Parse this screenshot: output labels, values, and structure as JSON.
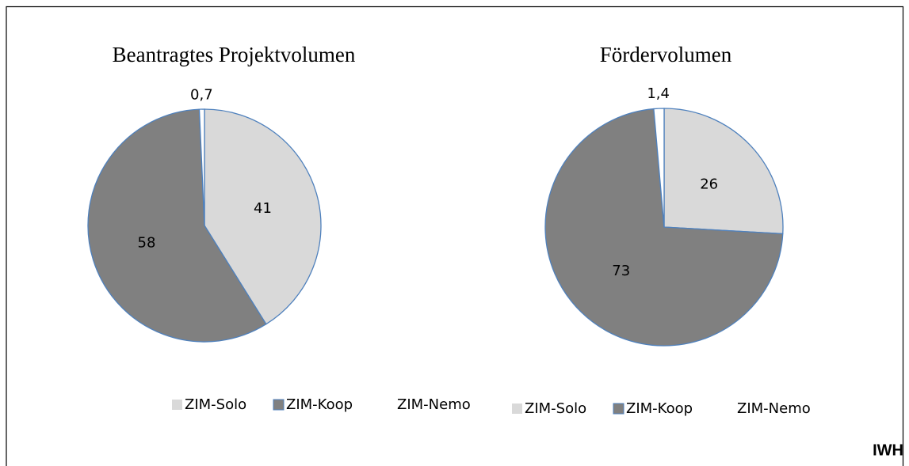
{
  "chart_data": [
    {
      "type": "pie",
      "title": "Beantragtes Projektvolumen",
      "categories": [
        "ZIM-Solo",
        "ZIM-Koop",
        "ZIM-Nemo"
      ],
      "values": [
        41,
        58,
        0.7
      ],
      "value_labels": [
        "41",
        "58",
        "0,7"
      ],
      "colors": [
        "#d9d9d9",
        "#808080",
        "#ffffff"
      ],
      "edge_color": "#4f81bd"
    },
    {
      "type": "pie",
      "title": "Fördervolumen",
      "categories": [
        "ZIM-Solo",
        "ZIM-Koop",
        "ZIM-Nemo"
      ],
      "values": [
        26,
        73,
        1.4
      ],
      "value_labels": [
        "26",
        "73",
        "1,4"
      ],
      "colors": [
        "#d9d9d9",
        "#808080",
        "#ffffff"
      ],
      "edge_color": "#4f81bd"
    }
  ],
  "source": "IWH"
}
